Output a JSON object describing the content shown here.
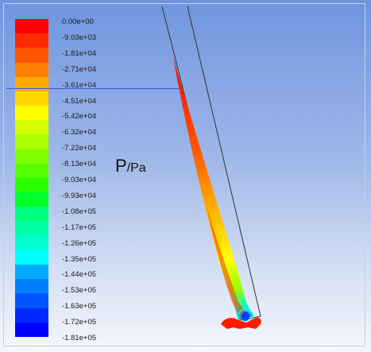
{
  "legend": {
    "colors": [
      "#ff0000",
      "#ff2a00",
      "#ff5500",
      "#ff7f00",
      "#ffaa00",
      "#ffd400",
      "#ffff00",
      "#d4ff00",
      "#aaff00",
      "#7fff00",
      "#55ff00",
      "#2aff00",
      "#00ff2a",
      "#00ff7f",
      "#00ffaa",
      "#00ffd4",
      "#00ffff",
      "#00aaff",
      "#007fff",
      "#0055ff",
      "#002aff",
      "#0000ff"
    ],
    "labels": [
      "0.00e+00",
      "-9.03e+03",
      "-1.81e+04",
      "-2.71e+04",
      "-3.61e+04",
      "-4.51e+04",
      "-5.42e+04",
      "-6.32e+04",
      "-7.22e+04",
      "-8.13e+04",
      "-9.03e+04",
      "-9.93e+04",
      "-1.08e+05",
      "-1.17e+05",
      "-1.26e+05",
      "-1.35e+05",
      "-1.44e+05",
      "-1.53e+05",
      "-1.63e+05",
      "-1.72e+05",
      "-1.81e+05"
    ]
  },
  "variable": {
    "symbol": "P",
    "unit": "/Pa"
  }
}
